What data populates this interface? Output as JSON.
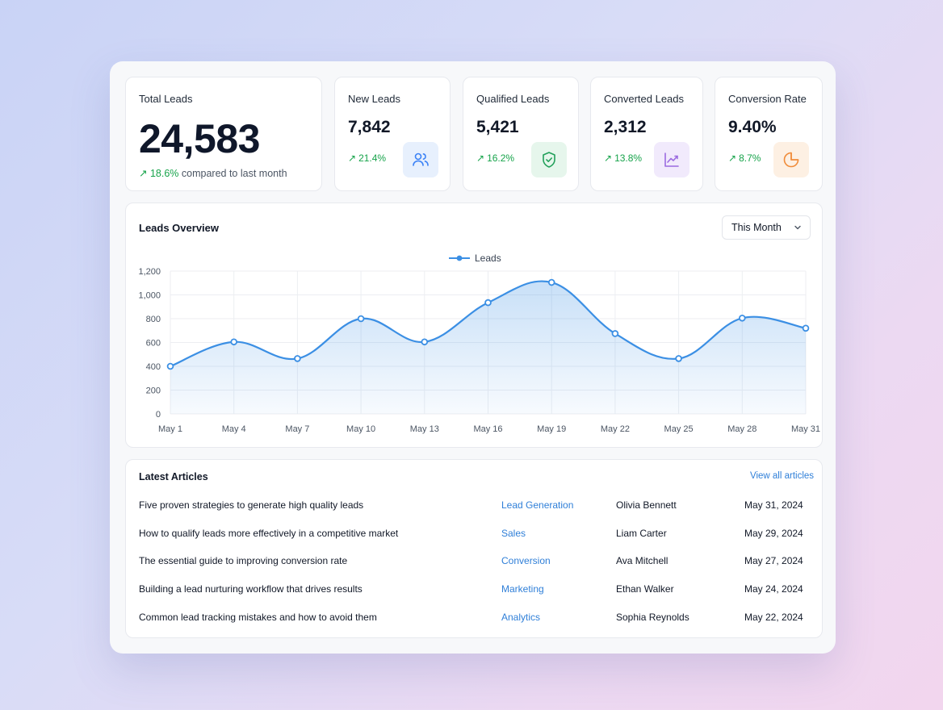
{
  "stats": {
    "total": {
      "title": "Total Leads",
      "value": "24,583",
      "change": "18.6%",
      "change_text": "compared to last month"
    },
    "new": {
      "title": "New Leads",
      "value": "7,842",
      "change": "21.4%",
      "icon": "users-icon",
      "color": "#3b82f6"
    },
    "qualified": {
      "title": "Qualified Leads",
      "value": "5,421",
      "change": "16.2%",
      "icon": "shield-check-icon",
      "color": "#22a05a"
    },
    "converted": {
      "title": "Converted Leads",
      "value": "2,312",
      "change": "13.8%",
      "icon": "trend-chart-icon",
      "color": "#9b6be0"
    },
    "rate": {
      "title": "Conversion Rate",
      "value": "9.40%",
      "change": "8.7%",
      "icon": "pie-chart-icon",
      "color": "#f08c3a"
    }
  },
  "overview": {
    "title": "Leads Overview",
    "period": "This Month"
  },
  "chart_data": {
    "type": "area",
    "series": [
      {
        "name": "Leads",
        "values": [
          400,
          605,
          465,
          800,
          605,
          935,
          1105,
          675,
          465,
          805,
          720
        ]
      }
    ],
    "categories": [
      "May 1",
      "May 4",
      "May 7",
      "May 10",
      "May 13",
      "May 16",
      "May 19",
      "May 22",
      "May 25",
      "May 28",
      "May 31"
    ],
    "yticks": [
      "0",
      "200",
      "400",
      "600",
      "800",
      "1,000",
      "1,200"
    ],
    "ylim": [
      0,
      1200
    ],
    "grid": true,
    "legend": "top-center",
    "color": "#3b8fe4"
  },
  "articles": {
    "title": "Latest Articles",
    "view_all": "View all articles",
    "rows": [
      {
        "title": "Five proven strategies to generate high quality leads",
        "category": "Lead Generation",
        "author": "Olivia Bennett",
        "date": "May 31, 2024"
      },
      {
        "title": "How to qualify leads more effectively in a competitive market",
        "category": "Sales",
        "author": "Liam Carter",
        "date": "May 29, 2024"
      },
      {
        "title": "The essential guide to improving conversion rate",
        "category": "Conversion",
        "author": "Ava Mitchell",
        "date": "May 27, 2024"
      },
      {
        "title": "Building a lead nurturing workflow that drives results",
        "category": "Marketing",
        "author": "Ethan Walker",
        "date": "May 24, 2024"
      },
      {
        "title": "Common lead tracking mistakes and how to avoid them",
        "category": "Analytics",
        "author": "Sophia Reynolds",
        "date": "May 22, 2024"
      }
    ]
  }
}
